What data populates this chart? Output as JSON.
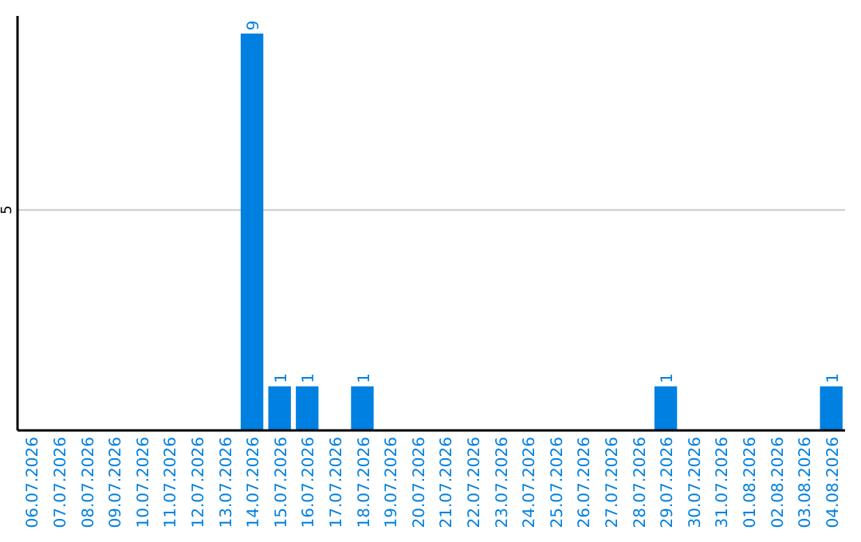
{
  "chart_data": {
    "type": "bar",
    "categories": [
      "06.07.2026",
      "07.07.2026",
      "08.07.2026",
      "09.07.2026",
      "10.07.2026",
      "11.07.2026",
      "12.07.2026",
      "13.07.2026",
      "14.07.2026",
      "15.07.2026",
      "16.07.2026",
      "17.07.2026",
      "18.07.2026",
      "19.07.2026",
      "20.07.2026",
      "21.07.2026",
      "22.07.2026",
      "23.07.2026",
      "24.07.2026",
      "25.07.2026",
      "26.07.2026",
      "27.07.2026",
      "28.07.2026",
      "29.07.2026",
      "30.07.2026",
      "31.07.2026",
      "01.08.2026",
      "02.08.2026",
      "03.08.2026",
      "04.08.2026"
    ],
    "values": [
      0,
      0,
      0,
      0,
      0,
      0,
      0,
      0,
      9,
      1,
      1,
      0,
      1,
      0,
      0,
      0,
      0,
      0,
      0,
      0,
      0,
      0,
      0,
      1,
      0,
      0,
      0,
      0,
      0,
      1
    ],
    "value_labels": [
      null,
      null,
      null,
      null,
      null,
      null,
      null,
      null,
      "9",
      "1",
      "1",
      null,
      "1",
      null,
      null,
      null,
      null,
      null,
      null,
      null,
      null,
      null,
      null,
      "1",
      null,
      null,
      null,
      null,
      null,
      "1"
    ],
    "color": "#0080e0",
    "ylim": [
      0,
      9.4
    ],
    "yticks": [
      5
    ],
    "grid": "y"
  }
}
